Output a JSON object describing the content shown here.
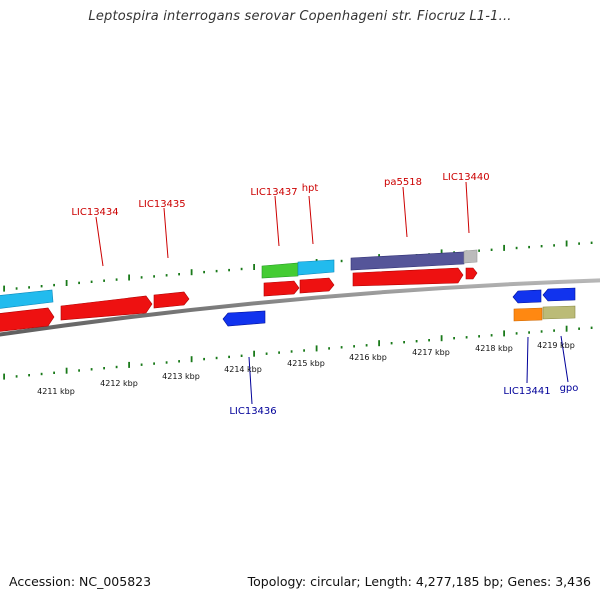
{
  "title": "Leptospira interrogans serovar Copenhageni str. Fiocruz L1-1...",
  "footer": {
    "accession": "Accession: NC_005823",
    "summary": "Topology: circular; Length: 4,277,185 bp; Genes: 3,436"
  },
  "colors": {
    "forward_label": "#cc0000",
    "reverse_label": "#000099",
    "tick": "#1a7a1a",
    "backbone": "#8a8a8a"
  },
  "kbp_labels": [
    "4211 kbp",
    "4212 kbp",
    "4213 kbp",
    "4214 kbp",
    "4215 kbp",
    "4216 kbp",
    "4217 kbp",
    "4218 kbp",
    "4219 kbp"
  ],
  "forward_gene_labels": [
    "LIC13434",
    "LIC13435",
    "LIC13437",
    "hpt",
    "pa5518",
    "LIC13440"
  ],
  "reverse_gene_labels": [
    "LIC13436",
    "LIC13441",
    "gpo"
  ]
}
